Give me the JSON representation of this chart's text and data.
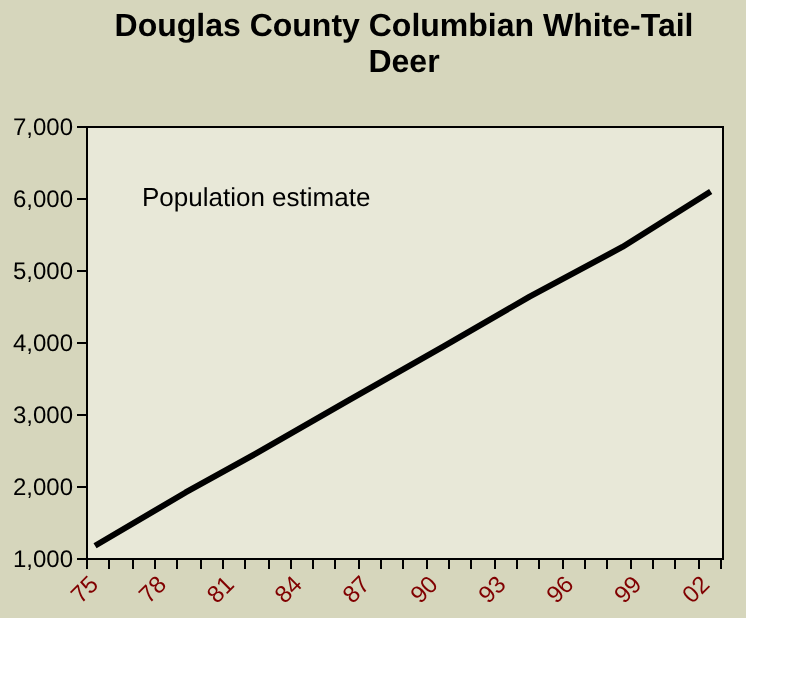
{
  "chart_data": {
    "type": "line",
    "title": "Douglas County Columbian White-Tail Deer",
    "x": [
      1975.4,
      1979.4,
      1982.5,
      1986.6,
      1990.8,
      1994.6,
      1998.7,
      2002.6
    ],
    "series": [
      {
        "name": "Population estimate",
        "color": "#000000",
        "values": [
          1170,
          1910,
          2450,
          3190,
          3940,
          4630,
          5320,
          6090
        ]
      }
    ],
    "xlim": [
      1975,
      2003.1
    ],
    "xticks": [
      {
        "value": 1975,
        "label": "75"
      },
      {
        "value": 1976,
        "label": null
      },
      {
        "value": 1977,
        "label": null
      },
      {
        "value": 1978,
        "label": "78"
      },
      {
        "value": 1979,
        "label": null
      },
      {
        "value": 1980,
        "label": null
      },
      {
        "value": 1981,
        "label": "81"
      },
      {
        "value": 1982,
        "label": null
      },
      {
        "value": 1983,
        "label": null
      },
      {
        "value": 1984,
        "label": "84"
      },
      {
        "value": 1985,
        "label": null
      },
      {
        "value": 1986,
        "label": null
      },
      {
        "value": 1987,
        "label": "87"
      },
      {
        "value": 1988,
        "label": null
      },
      {
        "value": 1989,
        "label": null
      },
      {
        "value": 1990,
        "label": "90"
      },
      {
        "value": 1991,
        "label": null
      },
      {
        "value": 1992,
        "label": null
      },
      {
        "value": 1993,
        "label": "93"
      },
      {
        "value": 1994,
        "label": null
      },
      {
        "value": 1995,
        "label": null
      },
      {
        "value": 1996,
        "label": "96"
      },
      {
        "value": 1997,
        "label": null
      },
      {
        "value": 1998,
        "label": null
      },
      {
        "value": 1999,
        "label": "99"
      },
      {
        "value": 2000,
        "label": null
      },
      {
        "value": 2001,
        "label": null
      },
      {
        "value": 2002,
        "label": "02"
      },
      {
        "value": 2003,
        "label": null
      }
    ],
    "ylim": [
      1000,
      7000
    ],
    "yticks": [
      {
        "value": 1000,
        "label": "1,000"
      },
      {
        "value": 2000,
        "label": "2,000"
      },
      {
        "value": 3000,
        "label": "3,000"
      },
      {
        "value": 4000,
        "label": "4,000"
      },
      {
        "value": 5000,
        "label": "5,000"
      },
      {
        "value": 6000,
        "label": "6,000"
      },
      {
        "value": 7000,
        "label": "7,000"
      }
    ],
    "grid": false,
    "marker": "none",
    "line_style": "solid"
  }
}
